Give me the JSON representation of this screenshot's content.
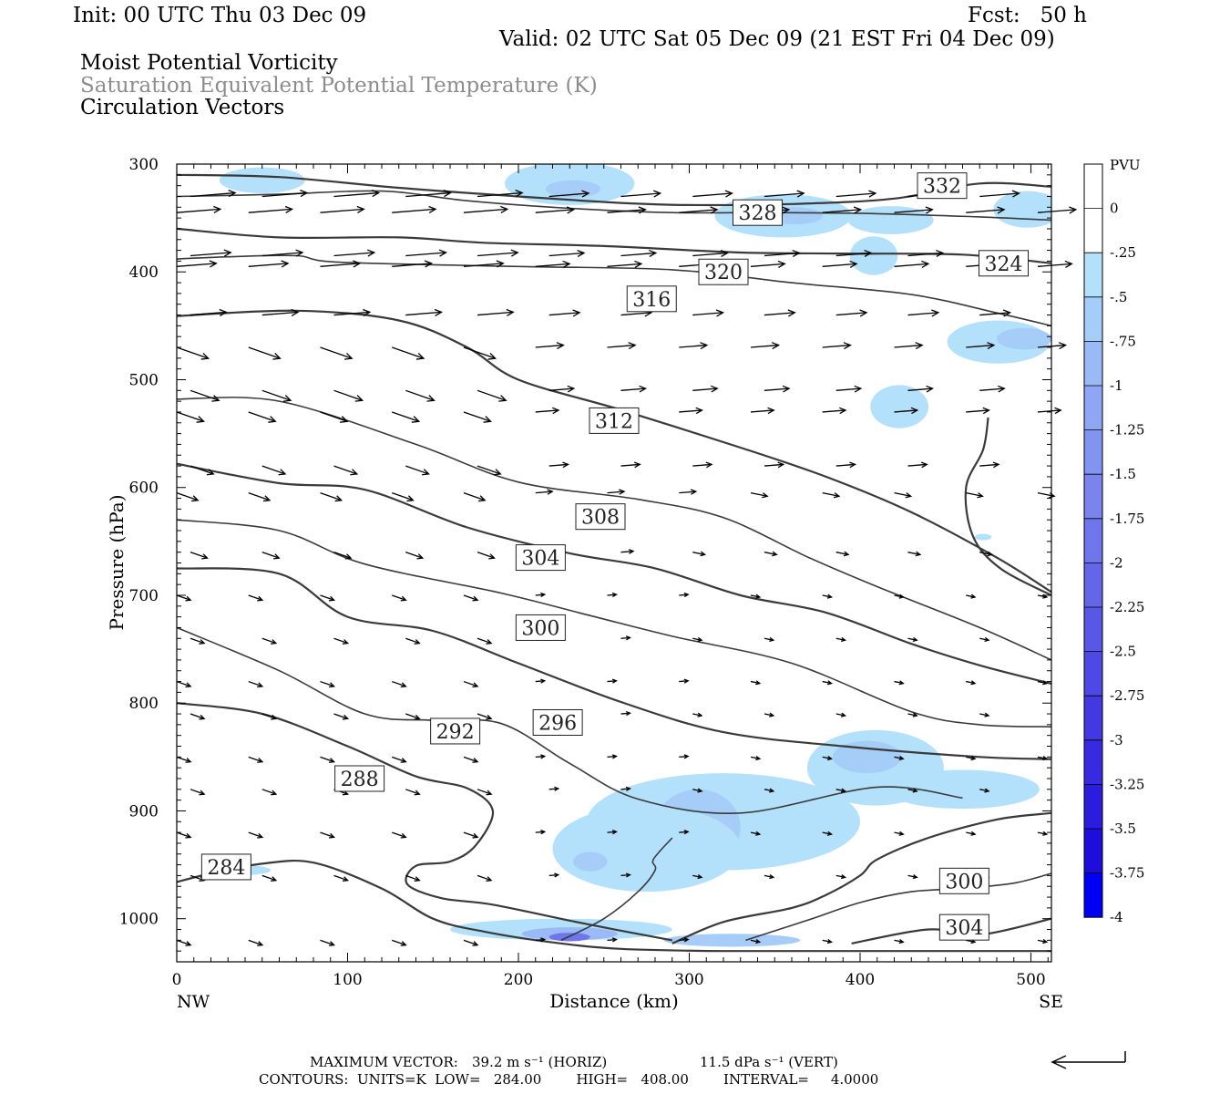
{
  "header": {
    "init": "Init: 00 UTC Thu 03 Dec 09",
    "fcst": "Fcst:   50 h",
    "valid": "Valid: 02 UTC Sat 05 Dec 09 (21 EST Fri 04 Dec 09)",
    "field1": "Moist Potential Vorticity",
    "field2": "Saturation Equivalent Potential Temperature (K)",
    "field3": "Circulation Vectors"
  },
  "footer": {
    "line1_label": "MAXIMUM VECTOR:",
    "horiz": "39.2 m s⁻¹ (HORIZ)",
    "vert": "11.5 dPa s⁻¹ (VERT)",
    "line2": "CONTOURS:  UNITS=K  LOW=   284.00        HIGH=   408.00        INTERVAL=     4.0000"
  },
  "colors": {
    "contour": "#3a3a3a",
    "vector": "#000000",
    "pv_levels": [
      "#b3e0fb",
      "#a6cdf8",
      "#9ab9f6",
      "#8ea6f3",
      "#8393f0",
      "#7a84ec",
      "#6f75ea",
      "#6466e8",
      "#5957e6",
      "#4e48e4",
      "#4339e2",
      "#372ae0",
      "#2b1cde",
      "#1e0edc",
      "#0000f4"
    ]
  },
  "chart_data": {
    "type": "cross-section",
    "xlabel": "Distance (km)",
    "ylabel": "Pressure (hPa)",
    "x_ticks": [
      0,
      100,
      200,
      300,
      400,
      500
    ],
    "y_ticks": [
      300,
      400,
      500,
      600,
      700,
      800,
      900,
      1000
    ],
    "xlim": [
      0,
      512
    ],
    "ylim": [
      1040,
      300
    ],
    "x_end_labels": {
      "left": "NW",
      "right": "SE"
    },
    "colorbar": {
      "unit": "PVU",
      "labels": [
        "0",
        "-.25",
        "-.5",
        "-.75",
        "-1",
        "-1.25",
        "-1.5",
        "-1.75",
        "-2",
        "-2.25",
        "-2.5",
        "-2.75",
        "-3",
        "-3.25",
        "-3.5",
        "-3.75",
        "-4"
      ]
    },
    "contour_labels": [
      {
        "text": "332",
        "x": 448,
        "p": 320
      },
      {
        "text": "328",
        "x": 340,
        "p": 345
      },
      {
        "text": "324",
        "x": 484,
        "p": 392
      },
      {
        "text": "320",
        "x": 320,
        "p": 400
      },
      {
        "text": "316",
        "x": 278,
        "p": 425
      },
      {
        "text": "312",
        "x": 256,
        "p": 538
      },
      {
        "text": "308",
        "x": 248,
        "p": 627
      },
      {
        "text": "304",
        "x": 213,
        "p": 665
      },
      {
        "text": "300",
        "x": 213,
        "p": 730
      },
      {
        "text": "296",
        "x": 223,
        "p": 818
      },
      {
        "text": "292",
        "x": 163,
        "p": 826
      },
      {
        "text": "288",
        "x": 107,
        "p": 870
      },
      {
        "text": "284",
        "x": 29,
        "p": 952
      },
      {
        "text": "300",
        "x": 461,
        "p": 965
      },
      {
        "text": "304",
        "x": 461,
        "p": 1008
      }
    ],
    "contours": [
      {
        "level": 332,
        "points": [
          [
            0,
            310
          ],
          [
            60,
            312
          ],
          [
            130,
            322
          ],
          [
            200,
            330
          ],
          [
            260,
            336
          ],
          [
            300,
            338
          ],
          [
            360,
            337
          ],
          [
            420,
            332
          ],
          [
            470,
            318
          ],
          [
            512,
            321
          ]
        ]
      },
      {
        "level": 328,
        "points": [
          [
            0,
            330
          ],
          [
            60,
            328
          ],
          [
            120,
            325
          ],
          [
            170,
            334
          ],
          [
            230,
            341
          ],
          [
            290,
            345
          ],
          [
            350,
            345
          ],
          [
            410,
            346
          ],
          [
            470,
            349
          ],
          [
            512,
            352
          ]
        ]
      },
      {
        "level": 324,
        "points": [
          [
            0,
            360
          ],
          [
            60,
            368
          ],
          [
            130,
            368
          ],
          [
            180,
            373
          ],
          [
            250,
            376
          ],
          [
            330,
            382
          ],
          [
            390,
            383
          ],
          [
            460,
            384
          ],
          [
            512,
            392
          ]
        ]
      },
      {
        "level": 320,
        "points": [
          [
            0,
            388
          ],
          [
            30,
            386
          ],
          [
            70,
            385
          ],
          [
            95,
            391
          ],
          [
            200,
            395
          ],
          [
            290,
            398
          ],
          [
            360,
            410
          ],
          [
            430,
            421
          ],
          [
            480,
            438
          ],
          [
            512,
            450
          ]
        ]
      },
      {
        "level": 316,
        "points": [
          [
            0,
            441
          ],
          [
            70,
            436
          ],
          [
            130,
            445
          ],
          [
            170,
            470
          ],
          [
            200,
            500
          ],
          [
            260,
            528
          ],
          [
            330,
            563
          ],
          [
            380,
            590
          ],
          [
            430,
            623
          ],
          [
            480,
            665
          ],
          [
            512,
            697
          ]
        ]
      },
      {
        "level": 312,
        "points": [
          [
            0,
            518
          ],
          [
            60,
            520
          ],
          [
            140,
            560
          ],
          [
            200,
            595
          ],
          [
            270,
            611
          ],
          [
            320,
            628
          ],
          [
            370,
            665
          ],
          [
            410,
            692
          ],
          [
            470,
            730
          ],
          [
            512,
            760
          ]
        ]
      },
      {
        "level": 308,
        "points": [
          [
            0,
            578
          ],
          [
            60,
            596
          ],
          [
            110,
            602
          ],
          [
            170,
            637
          ],
          [
            230,
            661
          ],
          [
            280,
            675
          ],
          [
            330,
            700
          ],
          [
            380,
            716
          ],
          [
            430,
            745
          ],
          [
            470,
            765
          ],
          [
            512,
            782
          ]
        ]
      },
      {
        "level": 304,
        "points": [
          [
            0,
            630
          ],
          [
            60,
            640
          ],
          [
            110,
            671
          ],
          [
            190,
            698
          ],
          [
            240,
            718
          ],
          [
            290,
            738
          ],
          [
            360,
            763
          ],
          [
            430,
            808
          ],
          [
            470,
            820
          ],
          [
            512,
            822
          ]
        ]
      },
      {
        "level": 300,
        "points": [
          [
            0,
            675
          ],
          [
            60,
            680
          ],
          [
            100,
            720
          ],
          [
            150,
            733
          ],
          [
            200,
            763
          ],
          [
            260,
            799
          ],
          [
            320,
            827
          ],
          [
            390,
            840
          ],
          [
            470,
            850
          ],
          [
            512,
            852
          ]
        ]
      },
      {
        "level": 296,
        "points": [
          [
            0,
            730
          ],
          [
            60,
            770
          ],
          [
            110,
            810
          ],
          [
            150,
            816
          ],
          [
            190,
            819
          ],
          [
            230,
            856
          ],
          [
            270,
            889
          ],
          [
            330,
            902
          ],
          [
            410,
            878
          ],
          [
            460,
            888
          ]
        ]
      },
      {
        "level": 292,
        "points": [
          [
            0,
            800
          ],
          [
            50,
            810
          ],
          [
            100,
            840
          ],
          [
            140,
            868
          ],
          [
            170,
            879
          ],
          [
            185,
            900
          ],
          [
            175,
            932
          ],
          [
            160,
            947
          ],
          [
            140,
            951
          ],
          [
            135,
            968
          ],
          [
            155,
            981
          ],
          [
            185,
            987
          ],
          [
            240,
            1005
          ],
          [
            290,
            1020
          ]
        ]
      },
      {
        "level": 284,
        "points": [
          [
            0,
            966
          ],
          [
            20,
            958
          ],
          [
            50,
            949
          ],
          [
            80,
            948
          ],
          [
            120,
            972
          ],
          [
            150,
            1000
          ],
          [
            180,
            1012
          ],
          [
            220,
            1022
          ],
          [
            260,
            1028
          ],
          [
            320,
            1030
          ],
          [
            400,
            1030
          ],
          [
            512,
            1030
          ]
        ]
      },
      {
        "level": 296,
        "points": [
          [
            225,
            1020
          ],
          [
            250,
            1000
          ],
          [
            270,
            975
          ],
          [
            280,
            955
          ],
          [
            279,
            945
          ],
          [
            290,
            925
          ]
        ]
      },
      {
        "level": 300,
        "points": [
          [
            290,
            1023
          ],
          [
            320,
            1003
          ],
          [
            360,
            990
          ],
          [
            380,
            978
          ],
          [
            400,
            960
          ],
          [
            410,
            945
          ],
          [
            440,
            925
          ],
          [
            480,
            908
          ],
          [
            512,
            902
          ]
        ]
      },
      {
        "level": 304,
        "points": [
          [
            333,
            1020
          ],
          [
            370,
            1001
          ],
          [
            400,
            985
          ],
          [
            430,
            975
          ],
          [
            460,
            972
          ],
          [
            490,
            967
          ],
          [
            512,
            958
          ]
        ]
      },
      {
        "level": 308,
        "points": [
          [
            395,
            1023
          ],
          [
            440,
            1010
          ],
          [
            470,
            1015
          ],
          [
            512,
            1000
          ]
        ]
      },
      {
        "level": 316,
        "points": [
          [
            475,
            535
          ],
          [
            472,
            565
          ],
          [
            462,
            600
          ],
          [
            466,
            645
          ],
          [
            482,
            675
          ],
          [
            512,
            700
          ]
        ]
      }
    ],
    "pv_blobs": [
      {
        "cx": 50,
        "p": 315,
        "rx": 25,
        "rp": 12,
        "level": 0
      },
      {
        "cx": 230,
        "p": 318,
        "rx": 38,
        "rp": 20,
        "level": 0
      },
      {
        "cx": 232,
        "p": 323,
        "rx": 16,
        "rp": 8,
        "level": 1
      },
      {
        "cx": 355,
        "p": 348,
        "rx": 40,
        "rp": 20,
        "level": 0
      },
      {
        "cx": 362,
        "p": 348,
        "rx": 16,
        "rp": 8,
        "level": 1
      },
      {
        "cx": 418,
        "p": 352,
        "rx": 25,
        "rp": 13,
        "level": 0
      },
      {
        "cx": 498,
        "p": 342,
        "rx": 20,
        "rp": 17,
        "level": 0
      },
      {
        "cx": 408,
        "p": 385,
        "rx": 14,
        "rp": 18,
        "level": 0
      },
      {
        "cx": 481,
        "p": 465,
        "rx": 30,
        "rp": 20,
        "level": 0
      },
      {
        "cx": 496,
        "p": 462,
        "rx": 16,
        "rp": 10,
        "level": 1
      },
      {
        "cx": 423,
        "p": 525,
        "rx": 17,
        "rp": 20,
        "level": 0
      },
      {
        "cx": 472,
        "p": 646,
        "rx": 5,
        "rp": 3,
        "level": 0
      },
      {
        "cx": 409,
        "p": 860,
        "rx": 40,
        "rp": 35,
        "level": 0
      },
      {
        "cx": 404,
        "p": 850,
        "rx": 20,
        "rp": 15,
        "level": 1
      },
      {
        "cx": 460,
        "p": 880,
        "rx": 45,
        "rp": 18,
        "level": 0
      },
      {
        "cx": 320,
        "p": 910,
        "rx": 80,
        "rp": 45,
        "level": 0
      },
      {
        "cx": 305,
        "p": 915,
        "rx": 25,
        "rp": 35,
        "level": 1
      },
      {
        "cx": 275,
        "p": 935,
        "rx": 55,
        "rp": 40,
        "level": 0
      },
      {
        "cx": 242,
        "p": 947,
        "rx": 10,
        "rp": 9,
        "level": 1
      },
      {
        "cx": 35,
        "p": 955,
        "rx": 20,
        "rp": 5,
        "level": 0
      },
      {
        "cx": 225,
        "p": 1010,
        "rx": 65,
        "rp": 10,
        "level": 0
      },
      {
        "cx": 230,
        "p": 1014,
        "rx": 28,
        "rp": 6,
        "level": 2
      },
      {
        "cx": 230,
        "p": 1017,
        "rx": 12,
        "rp": 4,
        "level": 6
      },
      {
        "cx": 325,
        "p": 1020,
        "rx": 40,
        "rp": 6,
        "level": 1
      }
    ]
  }
}
